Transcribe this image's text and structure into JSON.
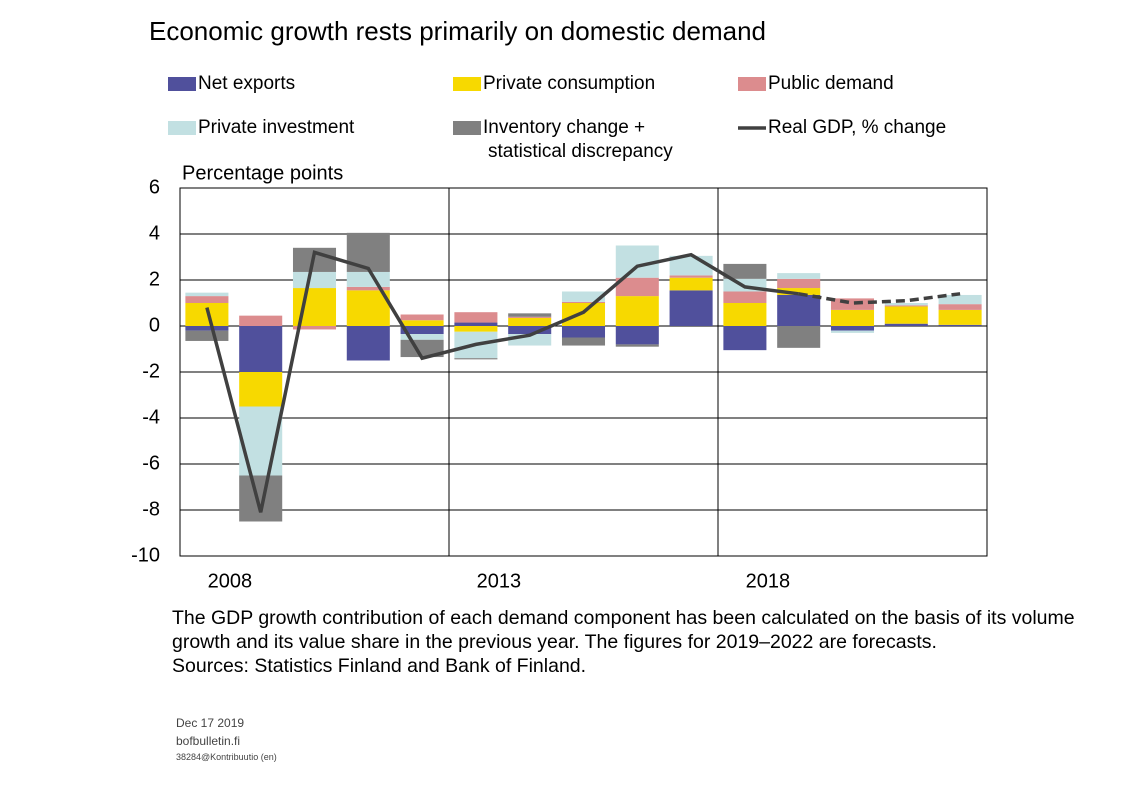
{
  "chart_data": {
    "type": "stacked_bar_line",
    "title": "Economic growth rests primarily on domestic demand",
    "y_label": "Percentage points",
    "categories": [
      "2008",
      null,
      null,
      null,
      null,
      "2013",
      null,
      null,
      null,
      null,
      "2018",
      null,
      null,
      null,
      null
    ],
    "series": [
      {
        "name": "Net exports",
        "color": "#50509c",
        "values": [
          -0.2,
          -2.0,
          0,
          -1.5,
          -0.35,
          0.15,
          -0.35,
          -0.5,
          -0.8,
          1.55,
          -1.05,
          1.35,
          -0.2,
          0.1,
          0.05
        ]
      },
      {
        "name": "Private consumption",
        "color": "#f7d900",
        "values": [
          1.0,
          -1.5,
          1.65,
          1.55,
          0.25,
          -0.25,
          0.35,
          1.0,
          1.3,
          0.55,
          1.0,
          0.3,
          0.7,
          0.75,
          0.65
        ]
      },
      {
        "name": "Public demand",
        "color": "#dc8c8e",
        "values": [
          0.3,
          0.45,
          -0.15,
          0.15,
          0.25,
          0.45,
          0.05,
          0.05,
          0.8,
          0.1,
          0.5,
          0.4,
          0.5,
          0.05,
          0.25
        ]
      },
      {
        "name": "Private investment",
        "color": "#c2e0e2",
        "values": [
          0.15,
          -3.0,
          0.7,
          0.65,
          -0.25,
          -1.15,
          -0.5,
          0.45,
          1.4,
          0.85,
          0.55,
          0.25,
          -0.1,
          0.1,
          0.4
        ]
      },
      {
        "name": "Inventory change +\nstatistical discrepancy",
        "color": "#808080",
        "values": [
          -0.45,
          -2.0,
          1.05,
          1.7,
          -0.75,
          -0.05,
          0.15,
          -0.35,
          -0.1,
          0,
          0.65,
          -0.95,
          0,
          0,
          0
        ]
      },
      {
        "name": "Real GDP, % change",
        "color": "#404040",
        "kind": "line",
        "dashed_from": 11,
        "values": [
          0.8,
          -8.1,
          3.2,
          2.5,
          -1.4,
          -0.8,
          -0.4,
          0.6,
          2.6,
          3.1,
          1.7,
          1.4,
          1.0,
          1.1,
          1.4
        ]
      }
    ],
    "ylim": [
      -10,
      6
    ],
    "yticks": [
      -10,
      -8,
      -6,
      -4,
      -2,
      0,
      2,
      4,
      6
    ],
    "grid": true,
    "notes": "The GDP growth contribution of each demand component has been calculated on the basis of its volume growth and its value share in the previous year. The figures for 2019–2022 are forecasts.",
    "sources": "Sources: Statistics Finland and Bank of Finland.",
    "date": "Dec 17 2019",
    "site": "bofbulletin.fi",
    "code": "38284@Kontribuutio (en)"
  }
}
